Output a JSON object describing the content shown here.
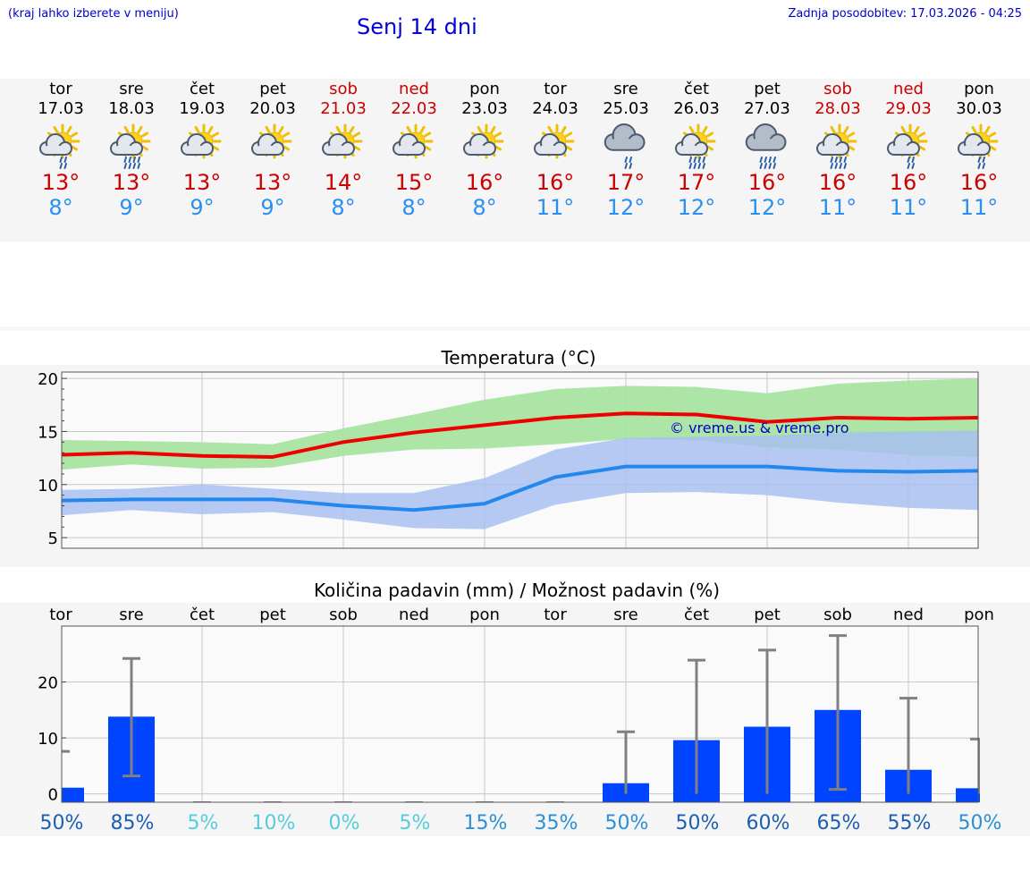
{
  "header": {
    "left_note": "(kraj lahko izberete v meniju)",
    "title": "Senj 14 dni",
    "updated": "Zadnja posodobitev: 17.03.2026 - 04:25"
  },
  "days": [
    {
      "name": "tor",
      "date": "17.03",
      "weekend": false,
      "icon": "sun-cloud-rain-icon",
      "tmax": "13°",
      "tmin": "8°"
    },
    {
      "name": "sre",
      "date": "18.03",
      "weekend": false,
      "icon": "sun-cloud-heavy-rain-icon",
      "tmax": "13°",
      "tmin": "9°"
    },
    {
      "name": "čet",
      "date": "19.03",
      "weekend": false,
      "icon": "sun-cloud-icon",
      "tmax": "13°",
      "tmin": "9°"
    },
    {
      "name": "pet",
      "date": "20.03",
      "weekend": false,
      "icon": "sun-cloud-icon",
      "tmax": "13°",
      "tmin": "9°"
    },
    {
      "name": "sob",
      "date": "21.03",
      "weekend": true,
      "icon": "sun-cloud-icon",
      "tmax": "14°",
      "tmin": "8°"
    },
    {
      "name": "ned",
      "date": "22.03",
      "weekend": true,
      "icon": "sun-cloud-icon",
      "tmax": "15°",
      "tmin": "8°"
    },
    {
      "name": "pon",
      "date": "23.03",
      "weekend": false,
      "icon": "sun-cloud-icon",
      "tmax": "16°",
      "tmin": "8°"
    },
    {
      "name": "tor",
      "date": "24.03",
      "weekend": false,
      "icon": "sun-cloud-icon",
      "tmax": "16°",
      "tmin": "11°"
    },
    {
      "name": "sre",
      "date": "25.03",
      "weekend": false,
      "icon": "cloud-rain-icon",
      "tmax": "17°",
      "tmin": "12°"
    },
    {
      "name": "čet",
      "date": "26.03",
      "weekend": false,
      "icon": "sun-cloud-heavy-rain-icon",
      "tmax": "17°",
      "tmin": "12°"
    },
    {
      "name": "pet",
      "date": "27.03",
      "weekend": false,
      "icon": "cloud-heavy-rain-icon",
      "tmax": "16°",
      "tmin": "12°"
    },
    {
      "name": "sob",
      "date": "28.03",
      "weekend": true,
      "icon": "sun-cloud-heavy-rain-icon",
      "tmax": "16°",
      "tmin": "11°"
    },
    {
      "name": "ned",
      "date": "29.03",
      "weekend": true,
      "icon": "sun-cloud-rain-icon",
      "tmax": "16°",
      "tmin": "11°"
    },
    {
      "name": "pon",
      "date": "30.03",
      "weekend": false,
      "icon": "sun-cloud-rain-icon",
      "tmax": "16°",
      "tmin": "11°"
    }
  ],
  "colors": {
    "max_line": "#ee0000",
    "max_band": "#a8e4a0",
    "min_line": "#2288ee",
    "min_band": "#a8bff0",
    "overlap_band": "#7cc0a8",
    "bar": "#0044ff",
    "error_bar": "#808080",
    "pct_colors": [
      "#1a5fb4",
      "#2a90d8",
      "#55ccdd"
    ]
  },
  "chart_data": [
    {
      "type": "line",
      "title": "Temperatura (°C)",
      "xlabel": "",
      "ylabel": "",
      "ylim": [
        4,
        20.6
      ],
      "yticks": [
        5,
        10,
        15,
        20
      ],
      "x": [
        0,
        1,
        2,
        3,
        4,
        5,
        6,
        7,
        8,
        9,
        10,
        11,
        12,
        13
      ],
      "watermark": "© vreme.us & vreme.pro",
      "series": [
        {
          "name": "max",
          "values": [
            12.8,
            13.0,
            12.7,
            12.6,
            14.0,
            14.9,
            15.6,
            16.3,
            16.7,
            16.6,
            15.9,
            16.3,
            16.2,
            16.3
          ]
        },
        {
          "name": "max_upper",
          "values": [
            14.2,
            14.1,
            14.0,
            13.8,
            15.3,
            16.6,
            18.0,
            19.0,
            19.3,
            19.2,
            18.6,
            19.5,
            19.8,
            20.0
          ]
        },
        {
          "name": "max_lower",
          "values": [
            11.4,
            11.9,
            11.5,
            11.6,
            12.7,
            13.3,
            13.4,
            13.8,
            14.3,
            14.2,
            13.5,
            13.3,
            12.8,
            12.6
          ]
        },
        {
          "name": "min",
          "values": [
            8.5,
            8.6,
            8.6,
            8.6,
            8.0,
            7.6,
            8.2,
            10.7,
            11.7,
            11.7,
            11.7,
            11.3,
            11.2,
            11.3
          ]
        },
        {
          "name": "min_upper",
          "values": [
            9.5,
            9.6,
            10.0,
            9.6,
            9.2,
            9.2,
            10.6,
            13.3,
            14.4,
            14.5,
            14.6,
            14.9,
            15.0,
            15.1
          ]
        },
        {
          "name": "min_lower",
          "values": [
            7.1,
            7.6,
            7.2,
            7.4,
            6.7,
            5.9,
            5.8,
            8.1,
            9.2,
            9.3,
            9.0,
            8.3,
            7.8,
            7.6
          ]
        }
      ]
    },
    {
      "type": "bar",
      "title": "Količina padavin (mm) / Možnost padavin (%)",
      "xlabel": "",
      "ylabel": "",
      "ylim": [
        -1.5,
        30
      ],
      "yticks": [
        0,
        10,
        20
      ],
      "categories": [
        "tor",
        "sre",
        "čet",
        "pet",
        "sob",
        "ned",
        "pon",
        "tor",
        "sre",
        "čet",
        "pet",
        "sob",
        "ned",
        "pon"
      ],
      "values": [
        1.1,
        13.8,
        0,
        0,
        0,
        0,
        0,
        0,
        1.9,
        9.6,
        12.0,
        15.0,
        4.3,
        1.0
      ],
      "error_high": [
        7.6,
        24.2,
        0,
        0,
        0,
        0,
        0,
        0,
        11.1,
        23.9,
        25.7,
        28.3,
        17.1,
        9.8
      ],
      "error_low": [
        0,
        3.2,
        0,
        0,
        0,
        0,
        0,
        0,
        0,
        0,
        0,
        0.8,
        0,
        0
      ],
      "probability": [
        "50%",
        "85%",
        "5%",
        "10%",
        "0%",
        "5%",
        "15%",
        "35%",
        "50%",
        "50%",
        "60%",
        "65%",
        "55%",
        "50%"
      ],
      "probability_level": [
        0,
        0,
        2,
        2,
        2,
        2,
        1,
        1,
        1,
        0,
        0,
        0,
        0,
        1
      ]
    }
  ]
}
